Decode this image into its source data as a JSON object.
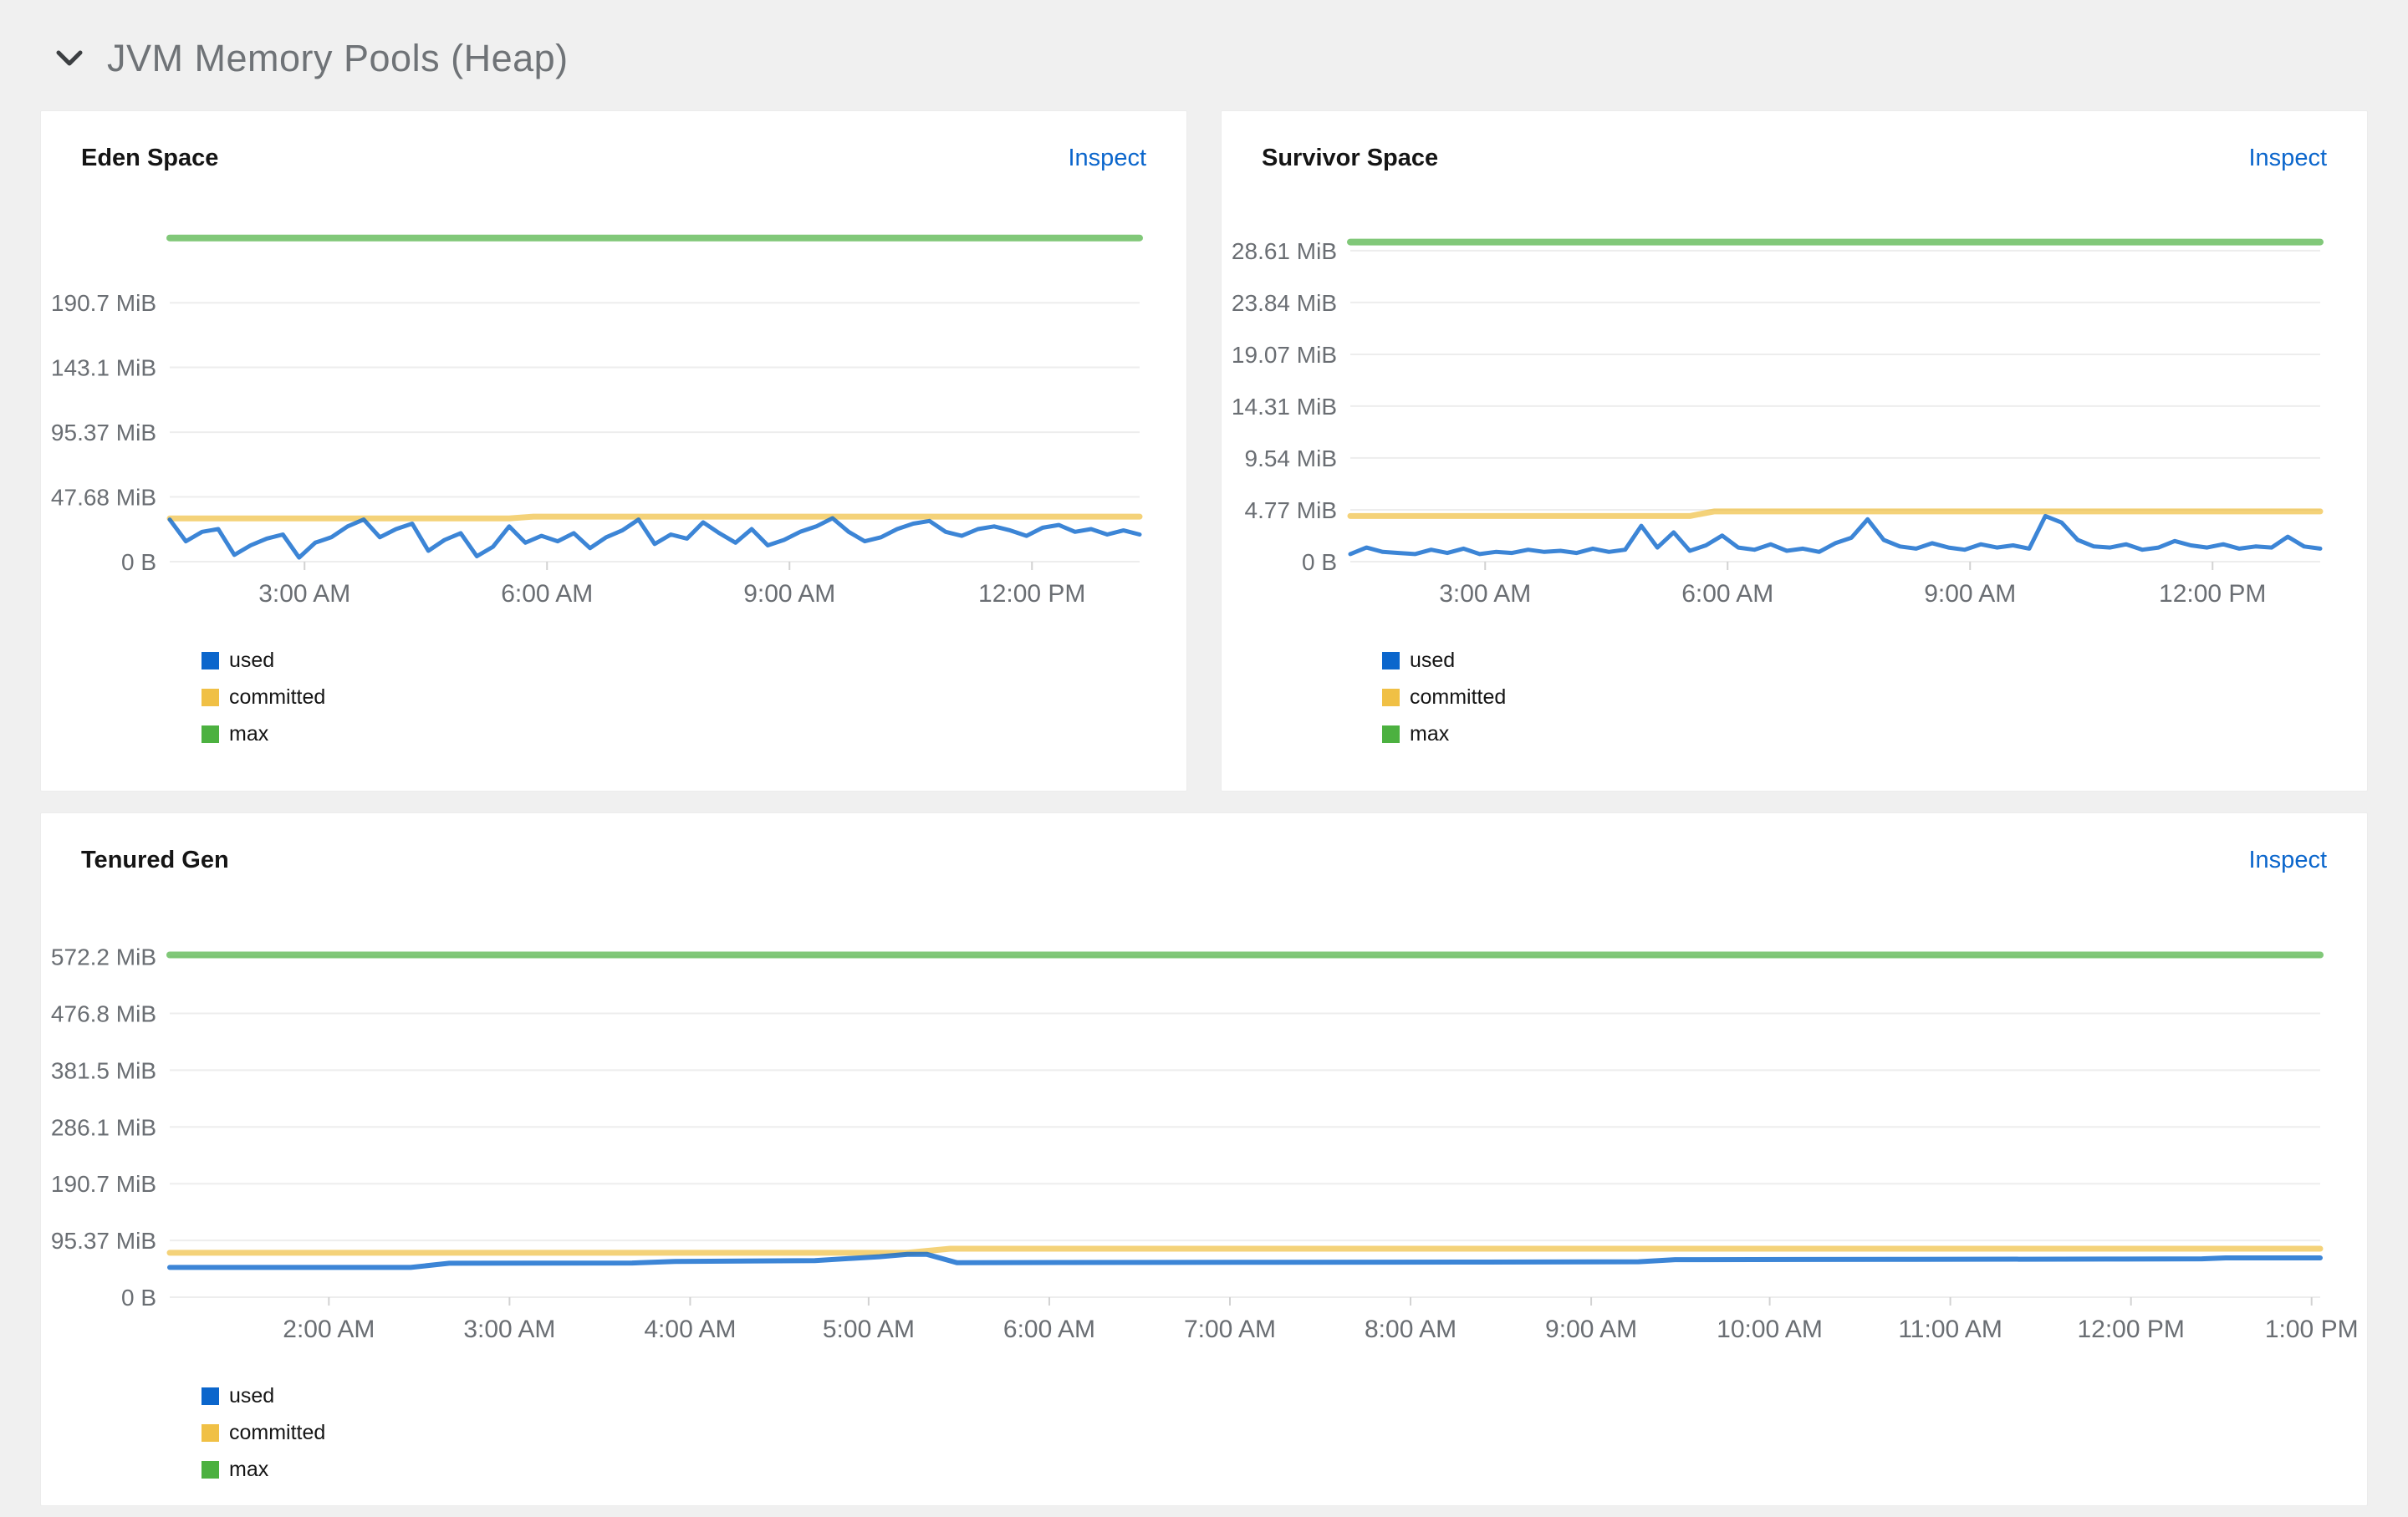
{
  "header": {
    "title": "JVM Memory Pools (Heap)",
    "collapse_icon": "chevron-down-icon"
  },
  "colors": {
    "page_bg": "#f0f0f0",
    "panel_bg": "#ffffff",
    "panel_border": "#ececec",
    "section_title": "#6f7377",
    "chevron": "#3c3f42",
    "title_text": "#151515",
    "link": "#0b66cc",
    "axis_text": "#6a6e73",
    "grid": "#ededed",
    "tick": "#d2d2d2",
    "used": "#0b66cc",
    "committed": "#f0c045",
    "max": "#4cb140"
  },
  "panels": [
    {
      "title": "Eden Space",
      "action": "Inspect"
    },
    {
      "title": "Survivor Space",
      "action": "Inspect"
    },
    {
      "title": "Tenured Gen",
      "action": "Inspect"
    }
  ],
  "chart_data": [
    {
      "type": "line",
      "title": "Eden Space",
      "xlabel": "",
      "ylabel": "",
      "grid": true,
      "legend_position": "bottom-left",
      "ylim": [
        0,
        245
      ],
      "yticks": [
        {
          "label": "190.7 MiB",
          "value": 190.7
        },
        {
          "label": "143.1 MiB",
          "value": 143.1
        },
        {
          "label": "95.37 MiB",
          "value": 95.37
        },
        {
          "label": "47.68 MiB",
          "value": 47.68
        },
        {
          "label": "0 B",
          "value": 0
        }
      ],
      "xticks": [
        {
          "label": "3:00 AM",
          "pos": 0.139
        },
        {
          "label": "6:00 AM",
          "pos": 0.389
        },
        {
          "label": "9:00 AM",
          "pos": 0.639
        },
        {
          "label": "12:00 PM",
          "pos": 0.889
        }
      ],
      "series": [
        {
          "name": "used",
          "color": "#0b66cc",
          "width": 5,
          "opacity": 0.8,
          "unit": "MiB",
          "values": [
            31,
            15,
            22,
            24,
            5,
            12,
            17,
            20,
            3,
            14,
            18,
            26,
            31,
            18,
            24,
            28,
            8,
            16,
            21,
            4,
            11,
            26,
            14,
            19,
            15,
            21,
            10,
            18,
            23,
            31,
            13,
            20,
            17,
            29,
            21,
            14,
            24,
            12,
            16,
            22,
            26,
            32,
            22,
            15,
            18,
            24,
            28,
            30,
            22,
            19,
            24,
            26,
            23,
            19,
            25,
            27,
            22,
            24,
            20,
            23,
            20
          ]
        },
        {
          "name": "committed",
          "color": "#f0c045",
          "width": 7,
          "opacity": 0.72,
          "unit": "MiB",
          "points": [
            [
              0,
              31.8
            ],
            [
              0.35,
              31.8
            ],
            [
              0.375,
              33.2
            ],
            [
              1,
              33.2
            ]
          ]
        },
        {
          "name": "max",
          "color": "#4cb140",
          "width": 8,
          "opacity": 0.7,
          "unit": "MiB",
          "points": [
            [
              0,
              238.4
            ],
            [
              1,
              238.4
            ]
          ]
        }
      ]
    },
    {
      "type": "line",
      "title": "Survivor Space",
      "xlabel": "",
      "ylabel": "",
      "grid": true,
      "legend_position": "bottom-left",
      "ylim": [
        0,
        30.6
      ],
      "yticks": [
        {
          "label": "28.61 MiB",
          "value": 28.61
        },
        {
          "label": "23.84 MiB",
          "value": 23.84
        },
        {
          "label": "19.07 MiB",
          "value": 19.07
        },
        {
          "label": "14.31 MiB",
          "value": 14.31
        },
        {
          "label": "9.54 MiB",
          "value": 9.54
        },
        {
          "label": "4.77 MiB",
          "value": 4.77
        },
        {
          "label": "0 B",
          "value": 0
        }
      ],
      "xticks": [
        {
          "label": "3:00 AM",
          "pos": 0.139
        },
        {
          "label": "6:00 AM",
          "pos": 0.389
        },
        {
          "label": "9:00 AM",
          "pos": 0.639
        },
        {
          "label": "12:00 PM",
          "pos": 0.889
        }
      ],
      "series": [
        {
          "name": "used",
          "color": "#0b66cc",
          "width": 5,
          "opacity": 0.8,
          "unit": "MiB",
          "values": [
            0.7,
            1.3,
            0.9,
            0.8,
            0.7,
            1.1,
            0.8,
            1.2,
            0.7,
            0.9,
            0.8,
            1.1,
            0.9,
            1.0,
            0.8,
            1.2,
            0.9,
            1.1,
            3.3,
            1.3,
            2.7,
            1.0,
            1.5,
            2.4,
            1.3,
            1.1,
            1.6,
            1.0,
            1.2,
            0.9,
            1.7,
            2.2,
            3.9,
            2.0,
            1.4,
            1.2,
            1.7,
            1.3,
            1.1,
            1.6,
            1.3,
            1.5,
            1.2,
            4.2,
            3.6,
            2.0,
            1.4,
            1.3,
            1.6,
            1.1,
            1.3,
            1.9,
            1.5,
            1.3,
            1.6,
            1.2,
            1.4,
            1.3,
            2.3,
            1.4,
            1.2
          ]
        },
        {
          "name": "committed",
          "color": "#f0c045",
          "width": 7,
          "opacity": 0.72,
          "unit": "MiB",
          "points": [
            [
              0,
              4.2
            ],
            [
              0.35,
              4.2
            ],
            [
              0.375,
              4.62
            ],
            [
              1,
              4.62
            ]
          ]
        },
        {
          "name": "max",
          "color": "#4cb140",
          "width": 8,
          "opacity": 0.7,
          "unit": "MiB",
          "points": [
            [
              0,
              29.4
            ],
            [
              1,
              29.4
            ]
          ]
        }
      ]
    },
    {
      "type": "line",
      "title": "Tenured Gen",
      "xlabel": "",
      "ylabel": "",
      "grid": true,
      "legend_position": "bottom-left",
      "ylim": [
        0,
        601
      ],
      "yticks": [
        {
          "label": "572.2 MiB",
          "value": 572.2
        },
        {
          "label": "476.8 MiB",
          "value": 476.8
        },
        {
          "label": "381.5 MiB",
          "value": 381.5
        },
        {
          "label": "286.1 MiB",
          "value": 286.1
        },
        {
          "label": "190.7 MiB",
          "value": 190.7
        },
        {
          "label": "95.37 MiB",
          "value": 95.37
        },
        {
          "label": "0 B",
          "value": 0
        }
      ],
      "xticks": [
        {
          "label": "2:00 AM",
          "pos": 0.074
        },
        {
          "label": "3:00 AM",
          "pos": 0.158
        },
        {
          "label": "4:00 AM",
          "pos": 0.242
        },
        {
          "label": "5:00 AM",
          "pos": 0.325
        },
        {
          "label": "6:00 AM",
          "pos": 0.409
        },
        {
          "label": "7:00 AM",
          "pos": 0.493
        },
        {
          "label": "8:00 AM",
          "pos": 0.577
        },
        {
          "label": "9:00 AM",
          "pos": 0.661
        },
        {
          "label": "10:00 AM",
          "pos": 0.744
        },
        {
          "label": "11:00 AM",
          "pos": 0.828
        },
        {
          "label": "12:00 PM",
          "pos": 0.912
        },
        {
          "label": "1:00 PM",
          "pos": 0.996
        }
      ],
      "series": [
        {
          "name": "used",
          "color": "#0b66cc",
          "width": 6,
          "opacity": 0.8,
          "unit": "MiB",
          "points": [
            [
              0,
              50
            ],
            [
              0.112,
              50
            ],
            [
              0.13,
              57
            ],
            [
              0.215,
              57.5
            ],
            [
              0.235,
              60
            ],
            [
              0.3,
              61.5
            ],
            [
              0.33,
              68
            ],
            [
              0.343,
              72
            ],
            [
              0.352,
              72
            ],
            [
              0.366,
              58
            ],
            [
              0.5,
              58.5
            ],
            [
              0.6,
              59
            ],
            [
              0.683,
              59.5
            ],
            [
              0.7,
              63
            ],
            [
              0.8,
              63.5
            ],
            [
              0.9,
              64
            ],
            [
              0.945,
              64.5
            ],
            [
              0.956,
              66
            ],
            [
              1,
              66
            ]
          ]
        },
        {
          "name": "committed",
          "color": "#f0c045",
          "width": 7,
          "opacity": 0.72,
          "unit": "MiB",
          "points": [
            [
              0,
              74.5
            ],
            [
              0.343,
              74.5
            ],
            [
              0.363,
              81.5
            ],
            [
              1,
              81.5
            ]
          ]
        },
        {
          "name": "max",
          "color": "#4cb140",
          "width": 8,
          "opacity": 0.7,
          "unit": "MiB",
          "points": [
            [
              0,
              575
            ],
            [
              1,
              575
            ]
          ]
        }
      ]
    }
  ]
}
